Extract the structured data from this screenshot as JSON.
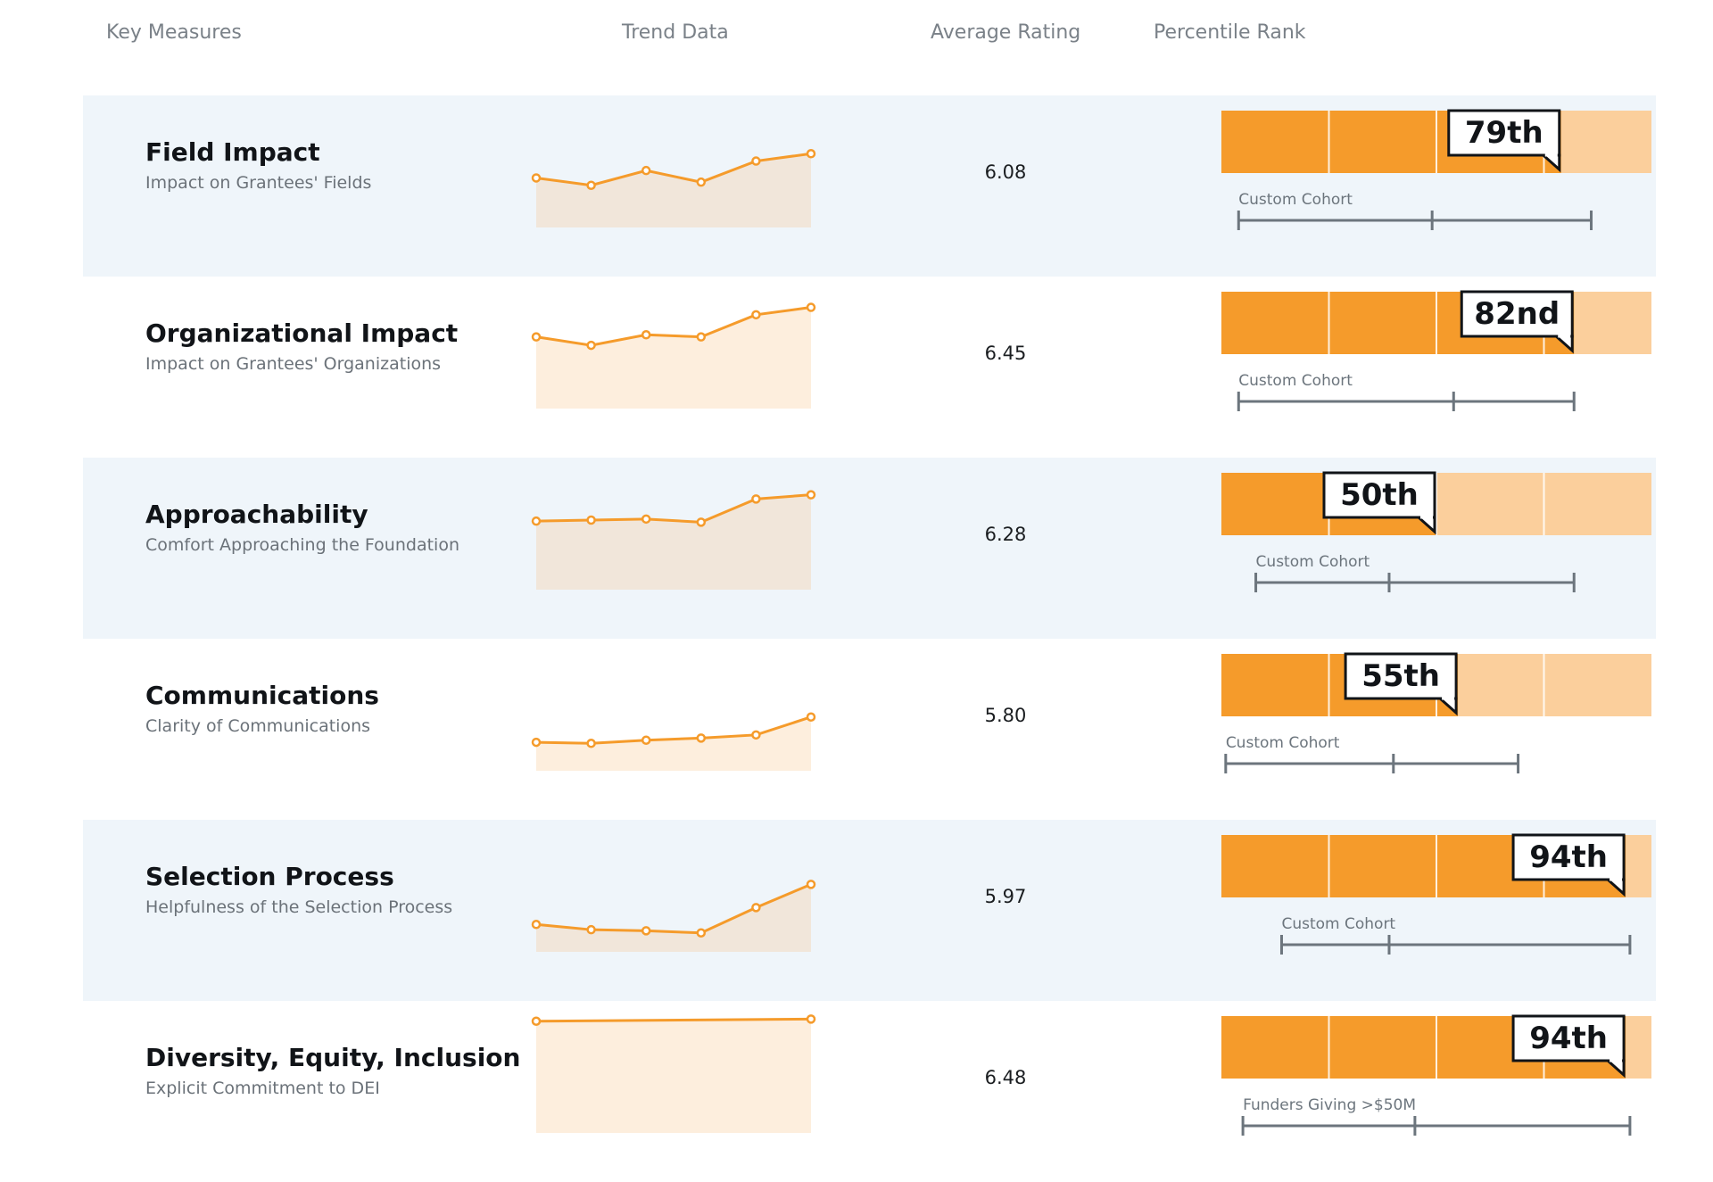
{
  "header": {
    "key_measures": "Key Measures",
    "trend_data": "Trend Data",
    "average_rating": "Average Rating",
    "percentile_rank": "Percentile Rank"
  },
  "colors": {
    "row_shade": "#eff5fa",
    "accent_orange": "#f59b2b",
    "light_orange": "#fbcf9c",
    "trend_fill_shaded": "#f1e6da",
    "trend_fill_white": "#fdeedd",
    "range_gray": "#6c757d"
  },
  "chart_data": [
    {
      "type": "line",
      "title": "Field Impact",
      "subtitle": "Impact on Grantees' Fields",
      "average_rating": "6.08",
      "trend_values": [
        5.87,
        5.8,
        5.94,
        5.83,
        6.03,
        6.1
      ],
      "percentile": 79,
      "percentile_label": "79th",
      "cohort": {
        "label": "Custom Cohort",
        "min": 4,
        "median": 49,
        "max": 86
      }
    },
    {
      "type": "line",
      "title": "Organizational Impact",
      "subtitle": "Impact on Grantees' Organizations",
      "average_rating": "6.45",
      "trend_values": [
        6.08,
        6.0,
        6.1,
        6.08,
        6.29,
        6.36
      ],
      "percentile": 82,
      "percentile_label": "82nd",
      "cohort": {
        "label": "Custom Cohort",
        "min": 4,
        "median": 54,
        "max": 82
      }
    },
    {
      "type": "line",
      "title": "Approachability",
      "subtitle": "Comfort Approaching the Foundation",
      "average_rating": "6.28",
      "trend_values": [
        6.05,
        6.06,
        6.07,
        6.04,
        6.26,
        6.3
      ],
      "percentile": 50,
      "percentile_label": "50th",
      "cohort": {
        "label": "Custom Cohort",
        "min": 8,
        "median": 39,
        "max": 82
      }
    },
    {
      "type": "line",
      "title": "Communications",
      "subtitle": "Clarity of Communications",
      "average_rating": "5.80",
      "trend_values": [
        5.67,
        5.66,
        5.69,
        5.71,
        5.74,
        5.91
      ],
      "percentile": 55,
      "percentile_label": "55th",
      "cohort": {
        "label": "Custom Cohort",
        "min": 1,
        "median": 40,
        "max": 69
      }
    },
    {
      "type": "line",
      "title": "Selection Process",
      "subtitle": "Helpfulness of the Selection Process",
      "average_rating": "5.97",
      "trend_values": [
        5.66,
        5.61,
        5.6,
        5.58,
        5.82,
        6.04
      ],
      "percentile": 94,
      "percentile_label": "94th",
      "cohort": {
        "label": "Custom Cohort",
        "min": 14,
        "median": 39,
        "max": 95
      }
    },
    {
      "type": "line",
      "title": "Diversity, Equity, Inclusion",
      "subtitle": "Explicit Commitment to DEI",
      "average_rating": "6.48",
      "trend_values": [
        6.46,
        6.48
      ],
      "percentile": 94,
      "percentile_label": "94th",
      "cohort": {
        "label": "Funders Giving >$50M",
        "min": 5,
        "median": 45,
        "max": 95
      }
    }
  ]
}
